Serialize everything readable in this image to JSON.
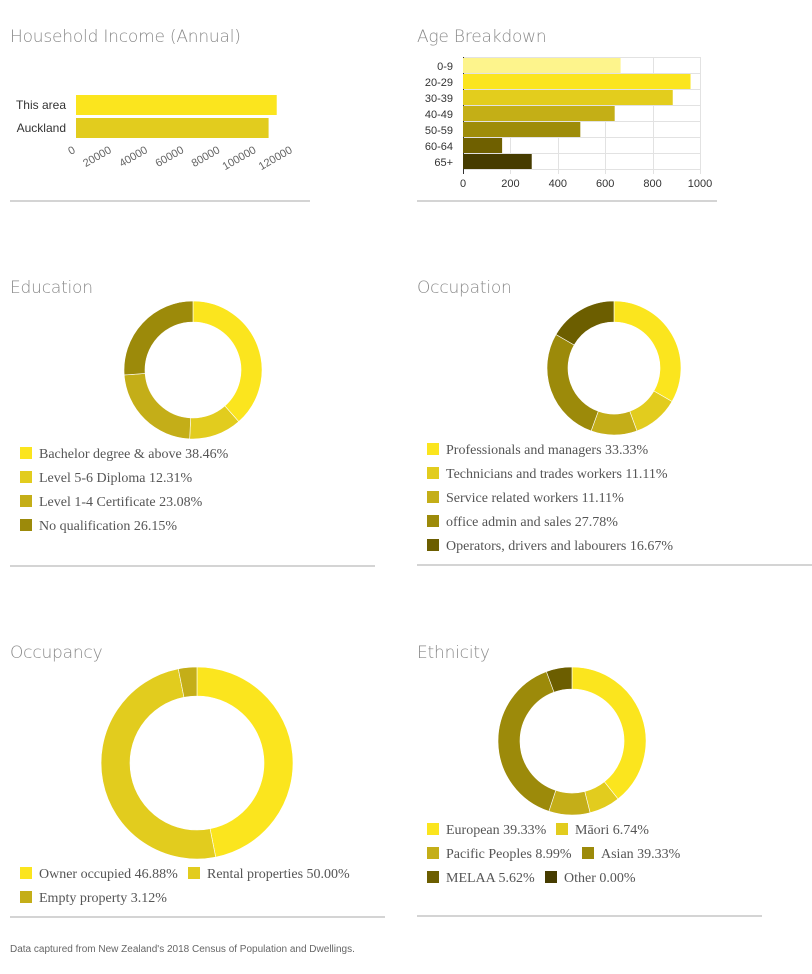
{
  "charts": {
    "income": {
      "title": "Household Income (Annual)",
      "chart_data": {
        "type": "bar",
        "orientation": "horizontal",
        "categories": [
          "This area",
          "Auckland"
        ],
        "values": [
          111000,
          106500
        ],
        "colors": [
          "#fbe51e",
          "#e2cc1e"
        ],
        "xlim": [
          0,
          120000
        ],
        "ticks": [
          "0",
          "20000",
          "40000",
          "60000",
          "80000",
          "100000",
          "120000"
        ]
      }
    },
    "age": {
      "title": "Age Breakdown",
      "chart_data": {
        "type": "bar",
        "orientation": "horizontal",
        "categories": [
          "0-9",
          "20-29",
          "30-39",
          "40-49",
          "50-59",
          "60-64",
          "65+"
        ],
        "values": [
          665,
          960,
          885,
          640,
          495,
          165,
          290
        ],
        "colors": [
          "#fdf48c",
          "#fbe51e",
          "#e3cd1d",
          "#c4af16",
          "#9e8c09",
          "#6f6000",
          "#463c00"
        ],
        "xlim": [
          0,
          1000
        ],
        "ticks": [
          "0",
          "200",
          "400",
          "600",
          "800",
          "1000"
        ]
      }
    },
    "education": {
      "title": "Education",
      "chart_data": {
        "type": "pie",
        "donut": true,
        "labels": [
          "Bachelor degree & above",
          "Level 5-6 Diploma",
          "Level 1-4 Certificate",
          "No qualification"
        ],
        "values": [
          38.46,
          12.31,
          23.08,
          26.15
        ],
        "colors": [
          "#fbe51e",
          "#e2cc1e",
          "#c4ae18",
          "#9c8a0a"
        ]
      },
      "legend": [
        "Bachelor degree & above 38.46%",
        "Level 5-6 Diploma 12.31%",
        "Level 1-4 Certificate 23.08%",
        "No qualification 26.15%"
      ]
    },
    "occupation": {
      "title": "Occupation",
      "chart_data": {
        "type": "pie",
        "donut": true,
        "labels": [
          "Professionals and managers",
          "Technicians and trades workers",
          "Service related workers",
          "office admin and sales",
          "Operators, drivers and labourers"
        ],
        "values": [
          33.33,
          11.11,
          11.11,
          27.78,
          16.67
        ],
        "colors": [
          "#fbe51e",
          "#e2cc1e",
          "#c4ae18",
          "#9c8a0a",
          "#6c5e00"
        ]
      },
      "legend": [
        "Professionals and managers 33.33%",
        "Technicians and trades workers 11.11%",
        "Service related workers 11.11%",
        "office admin and sales 27.78%",
        "Operators, drivers and labourers 16.67%"
      ]
    },
    "occupancy": {
      "title": "Occupancy",
      "chart_data": {
        "type": "pie",
        "donut": true,
        "labels": [
          "Owner occupied",
          "Rental properties",
          "Empty property"
        ],
        "values": [
          46.88,
          50.0,
          3.12
        ],
        "colors": [
          "#fbe51e",
          "#e2cc1e",
          "#c4ae18"
        ]
      },
      "legend": [
        "Owner occupied 46.88%",
        "Rental properties 50.00%",
        "Empty property 3.12%"
      ]
    },
    "ethnicity": {
      "title": "Ethnicity",
      "chart_data": {
        "type": "pie",
        "donut": true,
        "labels": [
          "European",
          "Māori",
          "Pacific Peoples",
          "Asian",
          "MELAA",
          "Other"
        ],
        "values": [
          39.33,
          6.74,
          8.99,
          39.33,
          5.62,
          0.0
        ],
        "colors": [
          "#fbe51e",
          "#e2cc1e",
          "#c4ae18",
          "#9c8a0a",
          "#6c5e00",
          "#463c00"
        ]
      },
      "legend": [
        "European 39.33%",
        "Māori 6.74%",
        "Pacific Peoples 8.99%",
        "Asian 39.33%",
        "MELAA 5.62%",
        "Other 0.00%"
      ]
    }
  },
  "footnote": "Data captured from New Zealand's 2018 Census of Population and Dwellings."
}
